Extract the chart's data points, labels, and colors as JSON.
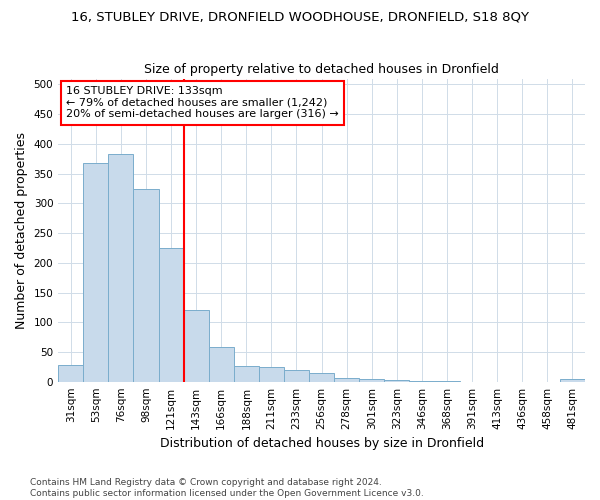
{
  "title": "16, STUBLEY DRIVE, DRONFIELD WOODHOUSE, DRONFIELD, S18 8QY",
  "subtitle": "Size of property relative to detached houses in Dronfield",
  "xlabel": "Distribution of detached houses by size in Dronfield",
  "ylabel": "Number of detached properties",
  "categories": [
    "31sqm",
    "53sqm",
    "76sqm",
    "98sqm",
    "121sqm",
    "143sqm",
    "166sqm",
    "188sqm",
    "211sqm",
    "233sqm",
    "256sqm",
    "278sqm",
    "301sqm",
    "323sqm",
    "346sqm",
    "368sqm",
    "391sqm",
    "413sqm",
    "436sqm",
    "458sqm",
    "481sqm"
  ],
  "values": [
    28,
    368,
    383,
    325,
    225,
    120,
    58,
    27,
    25,
    20,
    15,
    7,
    5,
    2,
    1,
    1,
    0,
    0,
    0,
    0,
    4
  ],
  "bar_color": "#c8daeb",
  "bar_edge_color": "#7aadcc",
  "vline_x_index": 5,
  "vline_color": "red",
  "annotation_text": "16 STUBLEY DRIVE: 133sqm\n← 79% of detached houses are smaller (1,242)\n20% of semi-detached houses are larger (316) →",
  "annotation_box_color": "white",
  "annotation_box_edge": "red",
  "ylim": [
    0,
    510
  ],
  "yticks": [
    0,
    50,
    100,
    150,
    200,
    250,
    300,
    350,
    400,
    450,
    500
  ],
  "footer": "Contains HM Land Registry data © Crown copyright and database right 2024.\nContains public sector information licensed under the Open Government Licence v3.0.",
  "bg_color": "#ffffff",
  "plot_bg_color": "#ffffff",
  "grid_color": "#d0dce8",
  "title_fontsize": 9.5,
  "subtitle_fontsize": 9,
  "tick_fontsize": 7.5,
  "label_fontsize": 9,
  "annot_fontsize": 8
}
